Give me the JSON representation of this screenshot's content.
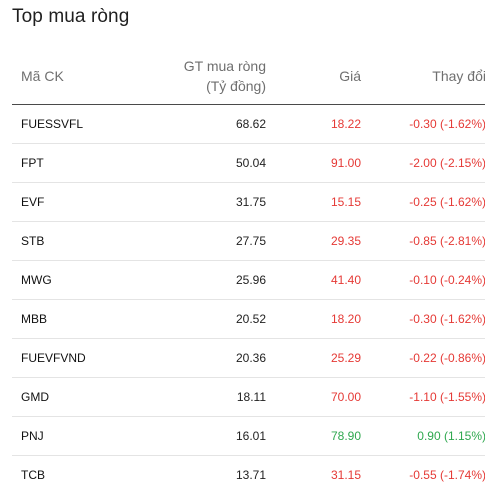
{
  "title": "Top mua ròng",
  "headers": {
    "code": "Mã CK",
    "value_line1": "GT mua ròng",
    "value_line2": "(Tỷ đồng)",
    "price": "Giá",
    "change": "Thay đổi"
  },
  "colors": {
    "down": "#e53935",
    "up": "#2fa84f"
  },
  "rows": [
    {
      "code": "FUESSVFL",
      "value": "68.62",
      "price": "18.22",
      "change": "-0.30 (-1.62%)",
      "trend": "down"
    },
    {
      "code": "FPT",
      "value": "50.04",
      "price": "91.00",
      "change": "-2.00 (-2.15%)",
      "trend": "down"
    },
    {
      "code": "EVF",
      "value": "31.75",
      "price": "15.15",
      "change": "-0.25 (-1.62%)",
      "trend": "down"
    },
    {
      "code": "STB",
      "value": "27.75",
      "price": "29.35",
      "change": "-0.85 (-2.81%)",
      "trend": "down"
    },
    {
      "code": "MWG",
      "value": "25.96",
      "price": "41.40",
      "change": "-0.10 (-0.24%)",
      "trend": "down"
    },
    {
      "code": "MBB",
      "value": "20.52",
      "price": "18.20",
      "change": "-0.30 (-1.62%)",
      "trend": "down"
    },
    {
      "code": "FUEVFVND",
      "value": "20.36",
      "price": "25.29",
      "change": "-0.22 (-0.86%)",
      "trend": "down"
    },
    {
      "code": "GMD",
      "value": "18.11",
      "price": "70.00",
      "change": "-1.10 (-1.55%)",
      "trend": "down"
    },
    {
      "code": "PNJ",
      "value": "16.01",
      "price": "78.90",
      "change": "0.90 (1.15%)",
      "trend": "up"
    },
    {
      "code": "TCB",
      "value": "13.71",
      "price": "31.15",
      "change": "-0.55 (-1.74%)",
      "trend": "down"
    }
  ]
}
